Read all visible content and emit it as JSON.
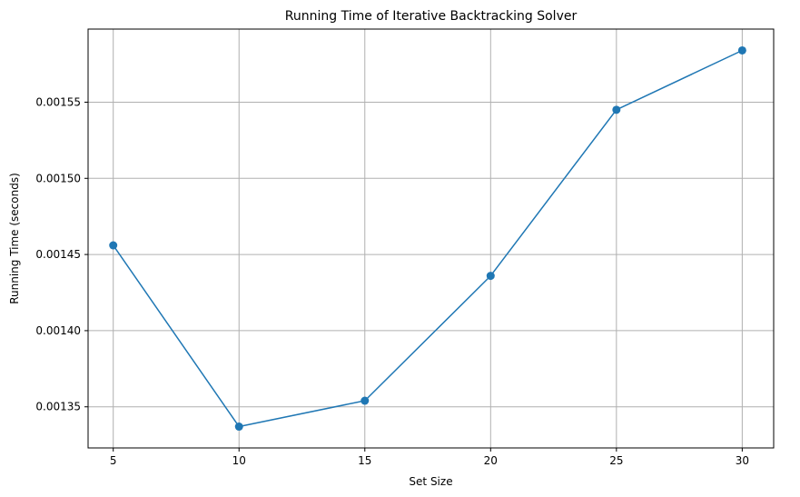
{
  "chart_data": {
    "type": "line",
    "title": "Running Time of Iterative Backtracking Solver",
    "xlabel": "Set Size",
    "ylabel": "Running Time (seconds)",
    "x": [
      5,
      10,
      15,
      20,
      25,
      30
    ],
    "series": [
      {
        "values": [
          0.001456,
          0.001337,
          0.001354,
          0.001436,
          0.001545,
          0.001584
        ],
        "color": "#1f77b4",
        "marker": "circle"
      }
    ],
    "xlim": [
      4.0,
      31.25
    ],
    "ylim": [
      0.001323,
      0.001598
    ],
    "xticks": [
      5,
      10,
      15,
      20,
      25,
      30
    ],
    "xtick_labels": [
      "5",
      "10",
      "15",
      "20",
      "25",
      "30"
    ],
    "yticks": [
      0.00135,
      0.0014,
      0.00145,
      0.0015,
      0.00155
    ],
    "ytick_labels": [
      "0.00135",
      "0.00140",
      "0.00145",
      "0.00150",
      "0.00155"
    ],
    "grid": true,
    "grid_color": "#b0b0b0"
  }
}
